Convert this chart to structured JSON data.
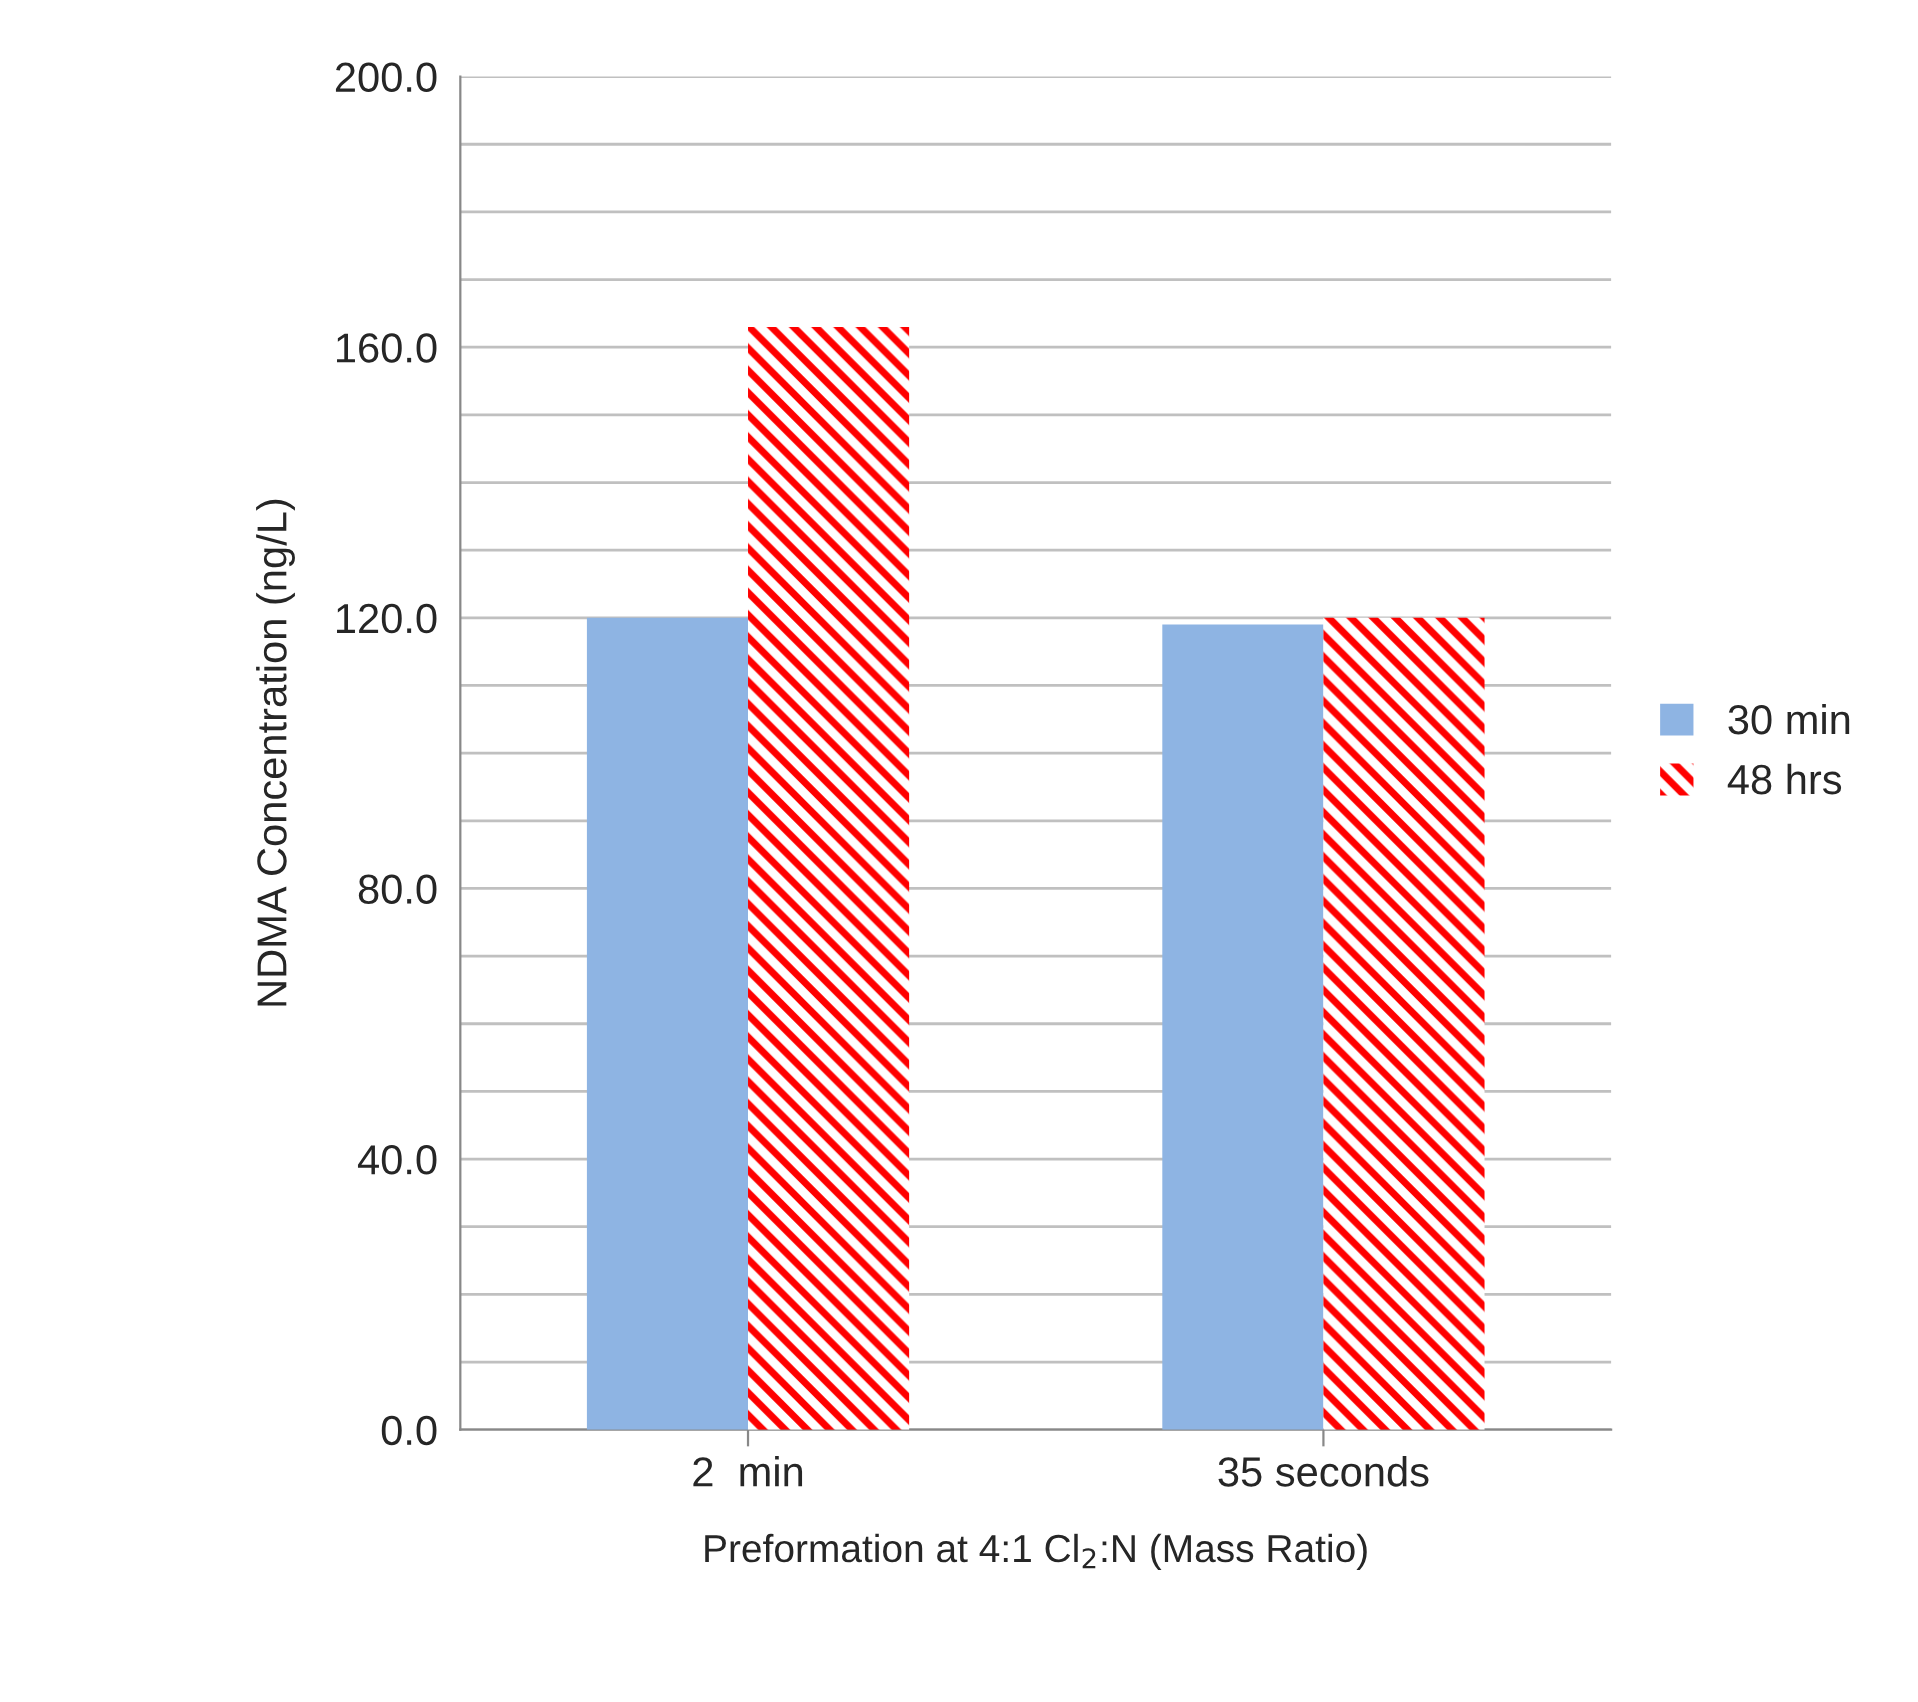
{
  "chart_data": {
    "type": "bar",
    "xlabel": "Preformation at 4:1 Cl$_{2}$:N (Mass Ratio)",
    "ylabel": "NDMA Concentration (ng/L)",
    "categories": [
      "2  min",
      "35 seconds"
    ],
    "series": [
      {
        "name": "30 min",
        "color": "#8eb4e3",
        "values": [
          120,
          119
        ]
      },
      {
        "name": "48 hrs",
        "color": "#ff0000",
        "values": [
          163,
          120
        ]
      }
    ],
    "ylim": [
      0,
      200
    ],
    "yticks": [
      {
        "value": 0,
        "label": "0.0"
      },
      {
        "value": 10,
        "label": null
      },
      {
        "value": 20,
        "label": null
      },
      {
        "value": 30,
        "label": null
      },
      {
        "value": 40,
        "label": "40.0"
      },
      {
        "value": 50,
        "label": null
      },
      {
        "value": 60,
        "label": null
      },
      {
        "value": 70,
        "label": null
      },
      {
        "value": 80,
        "label": "80.0"
      },
      {
        "value": 90,
        "label": null
      },
      {
        "value": 100,
        "label": null
      },
      {
        "value": 110,
        "label": null
      },
      {
        "value": 120,
        "label": "120.0"
      },
      {
        "value": 130,
        "label": null
      },
      {
        "value": 140,
        "label": null
      },
      {
        "value": 150,
        "label": null
      },
      {
        "value": 160,
        "label": "160.0"
      },
      {
        "value": 170,
        "label": null
      },
      {
        "value": 180,
        "label": null
      },
      {
        "value": 190,
        "label": null
      },
      {
        "value": 200,
        "label": "200.0"
      }
    ],
    "grid": "y",
    "legend": "right"
  }
}
